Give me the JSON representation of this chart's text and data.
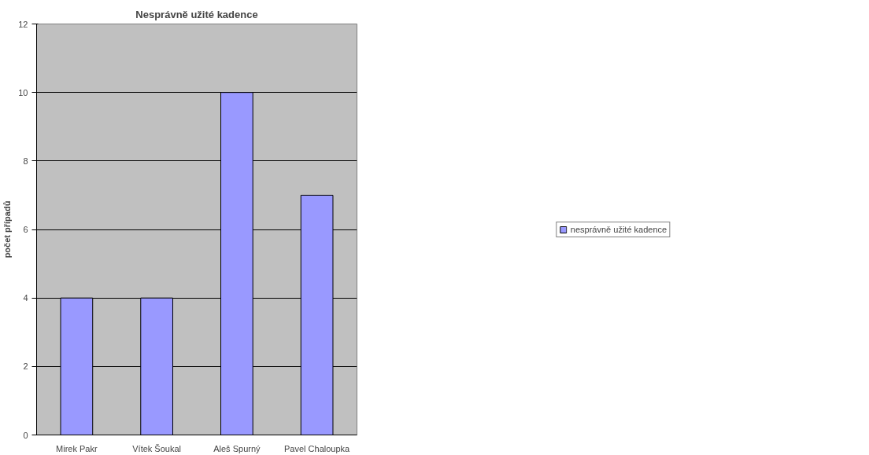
{
  "chart_data": {
    "type": "bar",
    "title": "Nesprávně užité kadence",
    "ylabel": "počet případů",
    "categories": [
      "Mirek Pakr",
      "Vítek Šoukal",
      "Aleš Spurný",
      "Pavel Chaloupka"
    ],
    "series": [
      {
        "name": "nesprávně užité kadence",
        "color": "#9999ff",
        "values": [
          4,
          4,
          10,
          7
        ]
      }
    ],
    "ylim": [
      0,
      12
    ],
    "yticks": [
      0,
      2,
      4,
      6,
      8,
      10,
      12
    ],
    "grid": "y",
    "legend": "right"
  }
}
